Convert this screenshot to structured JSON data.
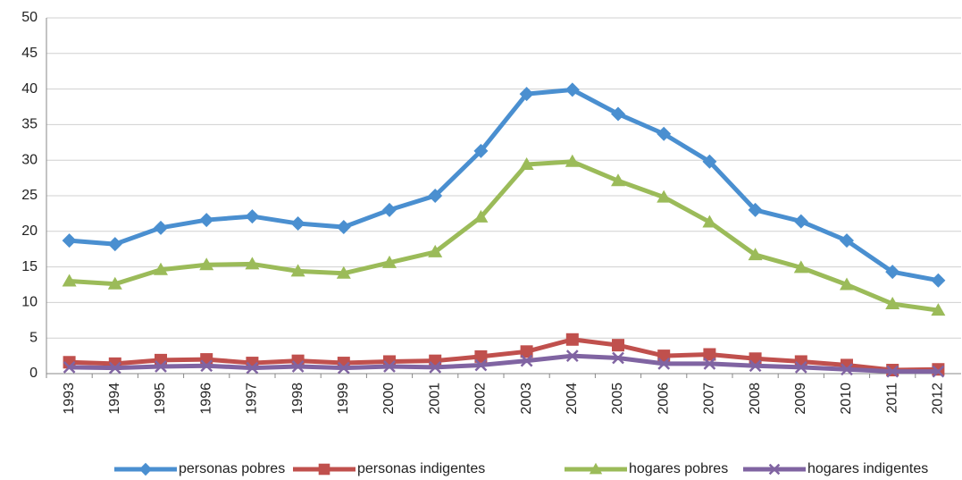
{
  "chart_data": {
    "type": "line",
    "categories": [
      "1993",
      "1994",
      "1995",
      "1996",
      "1997",
      "1998",
      "1999",
      "2000",
      "2001",
      "2002",
      "2003",
      "2004",
      "2005",
      "2006",
      "2007",
      "2008",
      "2009",
      "2010",
      "2011",
      "2012"
    ],
    "series": [
      {
        "name": "personas pobres",
        "color": "#4a8fd0",
        "marker": "diamond",
        "values": [
          18.7,
          18.2,
          20.5,
          21.6,
          22.1,
          21.1,
          20.6,
          23.0,
          25.0,
          31.3,
          39.3,
          39.9,
          36.5,
          33.7,
          29.8,
          23.0,
          21.4,
          18.7,
          14.3,
          13.1
        ]
      },
      {
        "name": "personas indigentes",
        "color": "#c0504d",
        "marker": "square",
        "values": [
          1.6,
          1.4,
          1.9,
          2.0,
          1.5,
          1.8,
          1.5,
          1.7,
          1.8,
          2.4,
          3.1,
          4.8,
          4.0,
          2.5,
          2.7,
          2.1,
          1.7,
          1.2,
          0.5,
          0.6
        ]
      },
      {
        "name": "hogares pobres",
        "color": "#9bbb59",
        "marker": "triangle",
        "values": [
          13.0,
          12.6,
          14.6,
          15.3,
          15.4,
          14.4,
          14.1,
          15.6,
          17.1,
          22.0,
          29.4,
          29.8,
          27.1,
          24.8,
          21.3,
          16.7,
          14.9,
          12.5,
          9.8,
          8.9
        ]
      },
      {
        "name": "hogares indigentes",
        "color": "#8064a2",
        "marker": "x",
        "values": [
          0.9,
          0.8,
          1.0,
          1.1,
          0.8,
          1.0,
          0.8,
          1.0,
          0.9,
          1.2,
          1.8,
          2.5,
          2.2,
          1.4,
          1.4,
          1.1,
          0.9,
          0.6,
          0.3,
          0.3
        ]
      }
    ],
    "ylim": [
      0,
      50
    ],
    "yticks": [
      0,
      5,
      10,
      15,
      20,
      25,
      30,
      35,
      40,
      45,
      50
    ],
    "grid": true,
    "legend": "bottom"
  }
}
